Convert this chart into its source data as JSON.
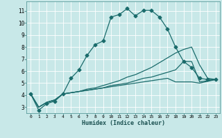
{
  "xlabel": "Humidex (Indice chaleur)",
  "bg_color": "#c8e8e8",
  "grid_color": "#ffffff",
  "line_color": "#1a6b6b",
  "xlim": [
    -0.5,
    23.5
  ],
  "ylim": [
    2.5,
    11.8
  ],
  "xticks": [
    0,
    1,
    2,
    3,
    4,
    5,
    6,
    7,
    8,
    9,
    10,
    11,
    12,
    13,
    14,
    15,
    16,
    17,
    18,
    19,
    20,
    21,
    22,
    23
  ],
  "yticks": [
    3,
    4,
    5,
    6,
    7,
    8,
    9,
    10,
    11
  ],
  "curve1_x": [
    0,
    1,
    2,
    3,
    4,
    5,
    6,
    7,
    8,
    9,
    10,
    11,
    12,
    13,
    14,
    15,
    16,
    17,
    18,
    19,
    20,
    21,
    22,
    23
  ],
  "curve1_y": [
    4.1,
    2.75,
    3.3,
    3.5,
    4.1,
    5.4,
    6.1,
    7.3,
    8.2,
    8.5,
    10.5,
    10.7,
    11.2,
    10.6,
    11.05,
    11.05,
    10.5,
    9.5,
    8.0,
    6.8,
    6.3,
    5.4,
    5.3,
    5.3
  ],
  "curve2_x": [
    0,
    1,
    2,
    3,
    4,
    5,
    6,
    7,
    8,
    9,
    10,
    11,
    12,
    13,
    14,
    15,
    16,
    17,
    18,
    19,
    20,
    21,
    22,
    23
  ],
  "curve2_y": [
    4.1,
    3.0,
    3.4,
    3.6,
    4.1,
    4.2,
    4.3,
    4.5,
    4.6,
    4.8,
    5.0,
    5.2,
    5.5,
    5.7,
    6.0,
    6.3,
    6.7,
    7.1,
    7.5,
    7.8,
    8.0,
    6.5,
    5.4,
    5.3
  ],
  "curve3_x": [
    0,
    1,
    2,
    3,
    4,
    5,
    6,
    7,
    8,
    9,
    10,
    11,
    12,
    13,
    14,
    15,
    16,
    17,
    18,
    19,
    20,
    21,
    22,
    23
  ],
  "curve3_y": [
    4.1,
    3.0,
    3.4,
    3.6,
    4.1,
    4.2,
    4.3,
    4.4,
    4.5,
    4.6,
    4.8,
    4.9,
    5.0,
    5.2,
    5.4,
    5.5,
    5.7,
    5.9,
    6.1,
    6.8,
    6.8,
    5.1,
    5.2,
    5.3
  ],
  "curve4_x": [
    0,
    1,
    2,
    3,
    4,
    5,
    6,
    7,
    8,
    9,
    10,
    11,
    12,
    13,
    14,
    15,
    16,
    17,
    18,
    19,
    20,
    21,
    22,
    23
  ],
  "curve4_y": [
    4.1,
    3.0,
    3.4,
    3.6,
    4.1,
    4.2,
    4.3,
    4.4,
    4.5,
    4.6,
    4.7,
    4.8,
    4.9,
    5.0,
    5.1,
    5.2,
    5.3,
    5.4,
    5.1,
    5.1,
    5.1,
    5.0,
    5.15,
    5.3
  ]
}
